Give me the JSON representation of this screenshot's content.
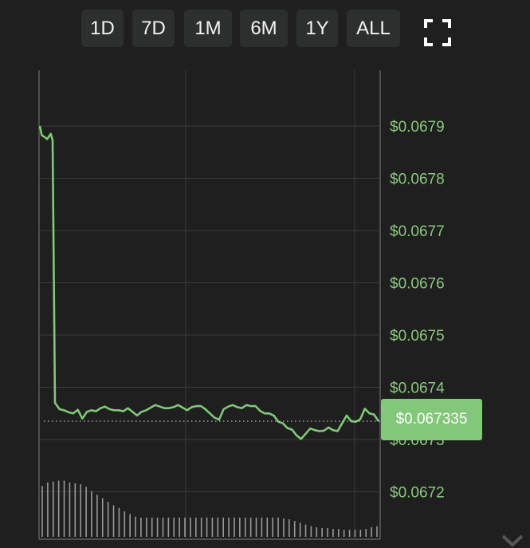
{
  "toolbar": {
    "ranges": [
      "1D",
      "7D",
      "1M",
      "6M",
      "1Y",
      "ALL"
    ],
    "fullscreen_icon": "fullscreen-icon"
  },
  "current_price": {
    "label": "$0.067335",
    "value": 0.067335,
    "color": "#82c77a"
  },
  "colors": {
    "line": "#82c77a",
    "grid": "#3a3c3a",
    "axis_text": "#8ac97d",
    "volume": "#9a9a9a",
    "background": "#1e1f1e"
  },
  "chart_data": {
    "type": "line",
    "title": "",
    "xlabel": "",
    "ylabel": "",
    "ylim": [
      0.06714,
      0.068
    ],
    "yticks": [
      {
        "value": 0.0672,
        "label": "$0.0672"
      },
      {
        "value": 0.0673,
        "label": "$0.0673"
      },
      {
        "value": 0.0674,
        "label": "$0.0674"
      },
      {
        "value": 0.0675,
        "label": "$0.0675"
      },
      {
        "value": 0.0676,
        "label": "$0.0676"
      },
      {
        "value": 0.0677,
        "label": "$0.0677"
      },
      {
        "value": 0.0678,
        "label": "$0.0678"
      },
      {
        "value": 0.0679,
        "label": "$0.0679"
      }
    ],
    "grid": true,
    "series": [
      {
        "values": [
          0.0679,
          0.067883,
          0.06788,
          0.067878,
          0.067875,
          0.06788,
          0.067885,
          0.067873,
          0.06737,
          0.067358,
          0.067356,
          0.067352,
          0.06735,
          0.067357,
          0.06734,
          0.067353,
          0.067356,
          0.067354,
          0.06736,
          0.067363,
          0.067358,
          0.067356,
          0.067356,
          0.067354,
          0.06736,
          0.067353,
          0.067346,
          0.067353,
          0.067356,
          0.067361,
          0.067366,
          0.067363,
          0.06736,
          0.06736,
          0.067362,
          0.067366,
          0.067361,
          0.067356,
          0.067362,
          0.067364,
          0.067364,
          0.067358,
          0.06735,
          0.067342,
          0.067338,
          0.067358,
          0.067363,
          0.067366,
          0.067362,
          0.06736,
          0.067366,
          0.067364,
          0.067364,
          0.067355,
          0.06735,
          0.06735,
          0.067346,
          0.067334,
          0.067331,
          0.067322,
          0.067319,
          0.067308,
          0.067301,
          0.067311,
          0.067321,
          0.067318,
          0.067316,
          0.067317,
          0.067323,
          0.067318,
          0.067316,
          0.067331,
          0.067346,
          0.067335,
          0.067334,
          0.067339,
          0.067359,
          0.06735,
          0.067348,
          0.067335
        ]
      }
    ],
    "volume": [
      0.58,
      0.62,
      0.63,
      0.64,
      0.64,
      0.62,
      0.61,
      0.6,
      0.57,
      0.52,
      0.48,
      0.44,
      0.4,
      0.36,
      0.33,
      0.29,
      0.26,
      0.23,
      0.22,
      0.22,
      0.22,
      0.22,
      0.22,
      0.22,
      0.22,
      0.22,
      0.22,
      0.22,
      0.22,
      0.22,
      0.22,
      0.22,
      0.22,
      0.22,
      0.22,
      0.22,
      0.22,
      0.22,
      0.22,
      0.22,
      0.22,
      0.22,
      0.22,
      0.22,
      0.21,
      0.2,
      0.18,
      0.16,
      0.14,
      0.12,
      0.11,
      0.1,
      0.1,
      0.09,
      0.09,
      0.08,
      0.08,
      0.08,
      0.08,
      0.09,
      0.11,
      0.12
    ]
  }
}
